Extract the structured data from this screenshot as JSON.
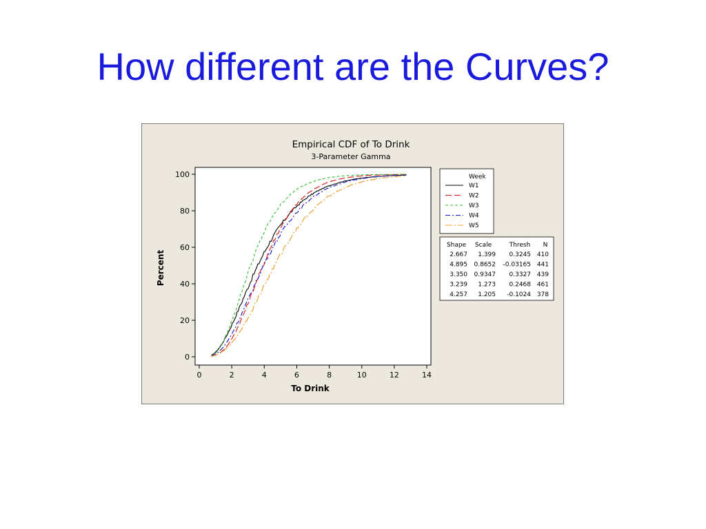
{
  "slide": {
    "title": "How different are the Curves?"
  },
  "chart_data": {
    "type": "line",
    "title": "Empirical CDF of To Drink",
    "subtitle": "3-Parameter Gamma",
    "xlabel": "To Drink",
    "ylabel": "Percent",
    "xlim": [
      0,
      14
    ],
    "ylim": [
      0,
      100
    ],
    "xticks": [
      0,
      2,
      4,
      6,
      8,
      10,
      12,
      14
    ],
    "yticks": [
      0,
      20,
      40,
      60,
      80,
      100
    ],
    "grid": false,
    "x_start": 0.75,
    "x_end": 12.75,
    "legend": {
      "title": "Week",
      "placement": "right"
    },
    "series": [
      {
        "name": "W1",
        "color": "#000000",
        "dash": "solid",
        "shape": 2.667,
        "scale": 1.399,
        "thresh": 0.3245,
        "n": 410
      },
      {
        "name": "W2",
        "color": "#dd1111",
        "dash": "long-dash",
        "shape": 4.895,
        "scale": 0.8652,
        "thresh": -0.03165,
        "n": 441
      },
      {
        "name": "W3",
        "color": "#33bb33",
        "dash": "short-dash",
        "shape": 3.35,
        "scale": 0.9347,
        "thresh": 0.3327,
        "n": 439
      },
      {
        "name": "W4",
        "color": "#1111cc",
        "dash": "dash-dot",
        "shape": 3.239,
        "scale": 1.273,
        "thresh": 0.2468,
        "n": 461
      },
      {
        "name": "W5",
        "color": "#ee9922",
        "dash": "dash-dot-long",
        "shape": 4.257,
        "scale": 1.205,
        "thresh": -0.1024,
        "n": 378
      }
    ],
    "param_table": {
      "headers": [
        "Shape",
        "Scale",
        "Thresh",
        "N"
      ],
      "rows": [
        [
          "2.667",
          "1.399",
          "0.3245",
          "410"
        ],
        [
          "4.895",
          "0.8652",
          "-0.03165",
          "441"
        ],
        [
          "3.350",
          "0.9347",
          "0.3327",
          "439"
        ],
        [
          "3.239",
          "1.273",
          "0.2468",
          "461"
        ],
        [
          "4.257",
          "1.205",
          "-0.1024",
          "378"
        ]
      ]
    }
  }
}
